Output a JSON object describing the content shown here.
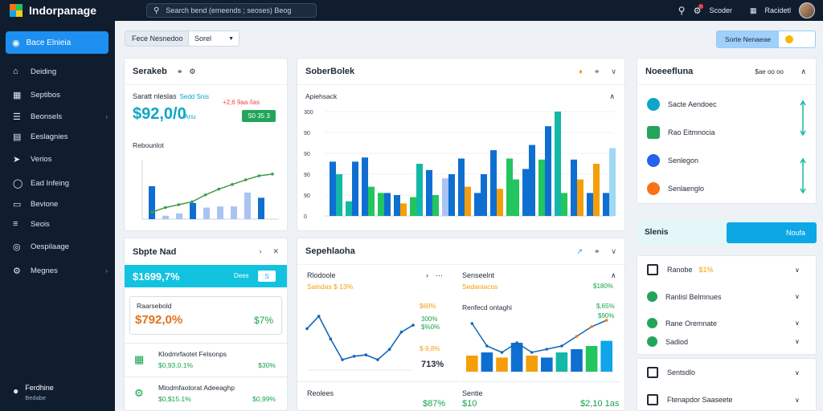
{
  "topbar": {
    "title": "Indorpanage",
    "search_placeholder": "Search bend (emeends ; seoses) Beog",
    "notifications_label": "Scoder",
    "user_label": "Racidetl"
  },
  "sidebar": {
    "active_item": "Bace Elnieia",
    "items": [
      {
        "label": "Deiding",
        "icon": "home-icon"
      },
      {
        "label": "Septibos",
        "icon": "grid-icon"
      },
      {
        "label": "Beonsels",
        "icon": "list-icon",
        "chevron": true
      },
      {
        "label": "Eeslagnies",
        "icon": "document-icon"
      },
      {
        "label": "Verios",
        "icon": "send-icon"
      },
      {
        "label": "Ead Infeing",
        "icon": "circle-icon"
      },
      {
        "label": "Bevione",
        "icon": "folder-icon"
      },
      {
        "label": "Seois",
        "icon": "stack-icon"
      },
      {
        "label": "Oespilaage",
        "icon": "chat-icon"
      },
      {
        "label": "Megnes",
        "icon": "gear-icon",
        "chevron": true
      }
    ],
    "user": {
      "name": "Ferdhine",
      "status": "Bedabe"
    }
  },
  "toolbar": {
    "filter_label": "Fece Nesnedoo",
    "filter_value": "Sorel",
    "right_button": "Sorte Nenaeae"
  },
  "card1": {
    "title": "Serakeb",
    "kpi_label": "Saratt nleslas",
    "kpi_tag": "Sedd Snis",
    "kpi_value": "$92,0/0",
    "kpi_sub": "/Anu",
    "kpi_change": "+2,6 9aa /ias",
    "kpi_button": "S0 35 3",
    "chart_title": "Rebounlot"
  },
  "card2": {
    "title": "SoberBolek",
    "subtitle": "Apiehsack",
    "y_ticks": [
      "300",
      "90",
      "90",
      "90",
      "90",
      "0"
    ]
  },
  "card3": {
    "title": "Sbpte Nad",
    "highlight_value": "$1699,7%",
    "highlight_label": "Dees",
    "highlight_btn": "S",
    "box_label": "Raarsebold",
    "box_value": "$792,0%",
    "box_right": "$7%",
    "rows": [
      {
        "title": "Klodmrfaotet Felsonps",
        "value": "$0,93.0.1%",
        "right": "$30%"
      },
      {
        "title": "Mlodmfaotorat Adeeaghp",
        "value": "$0,$15.1%",
        "right": "$0,99%"
      }
    ]
  },
  "card4": {
    "title": "Sepehlaoha",
    "left_title": "Rlodoole",
    "left_val": "Saindas $ 13%",
    "left_side": [
      "$60%",
      "300%",
      "$%0%",
      "$-9,8%"
    ],
    "left_big": "713%",
    "left_bottom_label": "Reolees",
    "left_bottom_val": "$87%",
    "right_title": "Senseelnt",
    "right_val": "Sedaniacos",
    "right_side": "$180%",
    "right_sub": "Renfecd ontaghi",
    "right_chart_labels": [
      "$,65%",
      "$90%"
    ],
    "right_bottom_label": "Sentie",
    "right_bottom_sub": "$10",
    "right_bottom_val": "$2,10 1as"
  },
  "right_col": {
    "card_title": "Noeeefluna",
    "card_meta": "$ae oo oo",
    "items": [
      {
        "label": "Sacte Aendoec",
        "color": "#0ea5c6"
      },
      {
        "label": "Rao Eitmnocia",
        "color": "#22a55b"
      },
      {
        "label": "Senlegon",
        "color": "#2563eb"
      },
      {
        "label": "Senlaenglo",
        "color": "#f97316"
      }
    ],
    "banner_title": "Slenis",
    "banner_button": "Noufa",
    "list": [
      {
        "label": "Ranobe",
        "extra": "$1%"
      },
      {
        "label": "Ranlisl Belmnues"
      },
      {
        "label": "Rane Oremnate"
      },
      {
        "label": "Sadiod"
      },
      {
        "label": "Sentsdlo"
      },
      {
        "label": "Ftenapdor Saaseete"
      }
    ]
  },
  "colors": {
    "blue": "#0f6fd1",
    "lightblue": "#a9c4f3",
    "green": "#22c55e",
    "teal": "#14b8a6",
    "orange": "#f59e0b",
    "accent": "#1d8ff0"
  },
  "chart_data": [
    {
      "type": "bar",
      "series": [
        {
          "values": [
            57,
            6,
            10,
            28,
            20,
            22,
            22,
            46,
            37,
            0
          ]
        }
      ],
      "line": [
        12,
        20,
        25,
        30,
        42,
        52,
        60,
        68,
        75,
        78
      ],
      "ylim": [
        0,
        100
      ]
    },
    {
      "type": "bar",
      "series": [
        {
          "values": [
            52,
            14,
            56,
            22,
            20,
            18,
            44,
            36,
            55,
            22,
            63,
            55,
            45,
            54,
            100,
            54,
            22,
            22
          ]
        },
        {
          "values": [
            40,
            52,
            28,
            22,
            12,
            50,
            20,
            40,
            28,
            40,
            26,
            35,
            68,
            86,
            22,
            35,
            50,
            65
          ]
        }
      ],
      "ylim": [
        0,
        100
      ]
    },
    {
      "type": "line",
      "values": [
        60,
        78,
        45,
        15,
        20,
        22,
        15,
        30,
        55,
        65
      ]
    },
    {
      "type": "bar",
      "series": [
        {
          "values": [
            25,
            30,
            22,
            45,
            25,
            22,
            30,
            35,
            40,
            48
          ]
        }
      ],
      "line": [
        75,
        40,
        30,
        45,
        30,
        35,
        40,
        55,
        70,
        80
      ]
    }
  ]
}
